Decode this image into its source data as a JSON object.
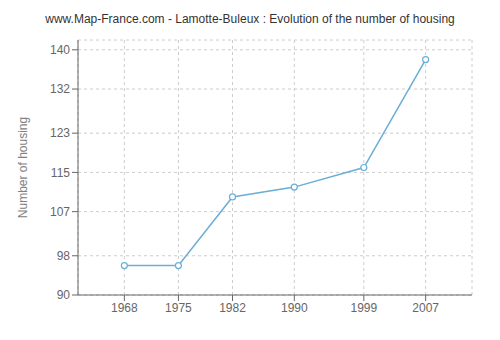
{
  "chart_data": {
    "type": "line",
    "title": "www.Map-France.com - Lamotte-Buleux : Evolution of the number of housing",
    "ylabel": "Number of housing",
    "x": [
      1968,
      1975,
      1982,
      1990,
      1999,
      2007
    ],
    "values": [
      96,
      96,
      110,
      112,
      116,
      138
    ],
    "xlim": [
      1962,
      2013
    ],
    "xticks": [
      1968,
      1975,
      1982,
      1990,
      1999,
      2007
    ],
    "ylim": [
      90,
      142
    ],
    "yticks": [
      90,
      98,
      107,
      115,
      123,
      132,
      140
    ],
    "color": "#6aaed6",
    "marker": "circle",
    "grid": true
  }
}
